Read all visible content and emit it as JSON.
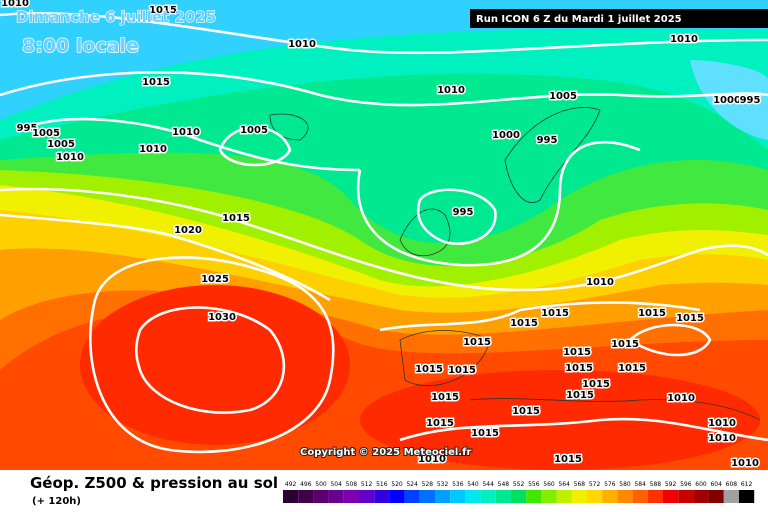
{
  "header": {
    "date": "Dimanche 6 juillet 2025",
    "time": "8:00 locale",
    "run": "Run ICON 6 Z du Mardi 1 juillet 2025"
  },
  "map": {
    "isobar_labels": [
      1010,
      1015,
      1010,
      1015,
      1010,
      1005,
      1010,
      1000,
      995,
      995,
      1005,
      1005,
      1010,
      1010,
      1010,
      1005,
      1000,
      995,
      995,
      1015,
      1020,
      1025,
      1030,
      1010,
      1015,
      1015,
      1015,
      1015,
      1015,
      1015,
      1015,
      1015,
      1015,
      1015,
      1015,
      1015,
      1015,
      1015,
      1015,
      1015,
      1015,
      1010,
      1010,
      1010,
      1015,
      1010,
      1010
    ]
  },
  "copyright": "Copyright © 2025 Meteociel.fr",
  "footer": {
    "title": "Géop. Z500 & pression au sol",
    "lead": "(+ 120h)"
  },
  "legend": {
    "values": [
      492,
      496,
      500,
      504,
      508,
      512,
      516,
      520,
      524,
      528,
      532,
      536,
      540,
      544,
      548,
      552,
      556,
      560,
      564,
      568,
      572,
      576,
      580,
      584,
      588,
      592,
      596,
      600,
      604,
      608,
      612
    ],
    "colors": [
      "#2a0030",
      "#40004a",
      "#5a0070",
      "#6a0090",
      "#7a00b0",
      "#6000c8",
      "#3000e0",
      "#0000ff",
      "#0040ff",
      "#0070ff",
      "#00a0ff",
      "#00c8ff",
      "#00e8f0",
      "#00f0c0",
      "#00e890",
      "#00e060",
      "#40e800",
      "#80f000",
      "#c0f000",
      "#f0f000",
      "#ffd800",
      "#ffb000",
      "#ff8800",
      "#ff6000",
      "#ff3000",
      "#f00000",
      "#c80000",
      "#a00000",
      "#800000",
      "#a0a0a0",
      "#000000"
    ]
  }
}
